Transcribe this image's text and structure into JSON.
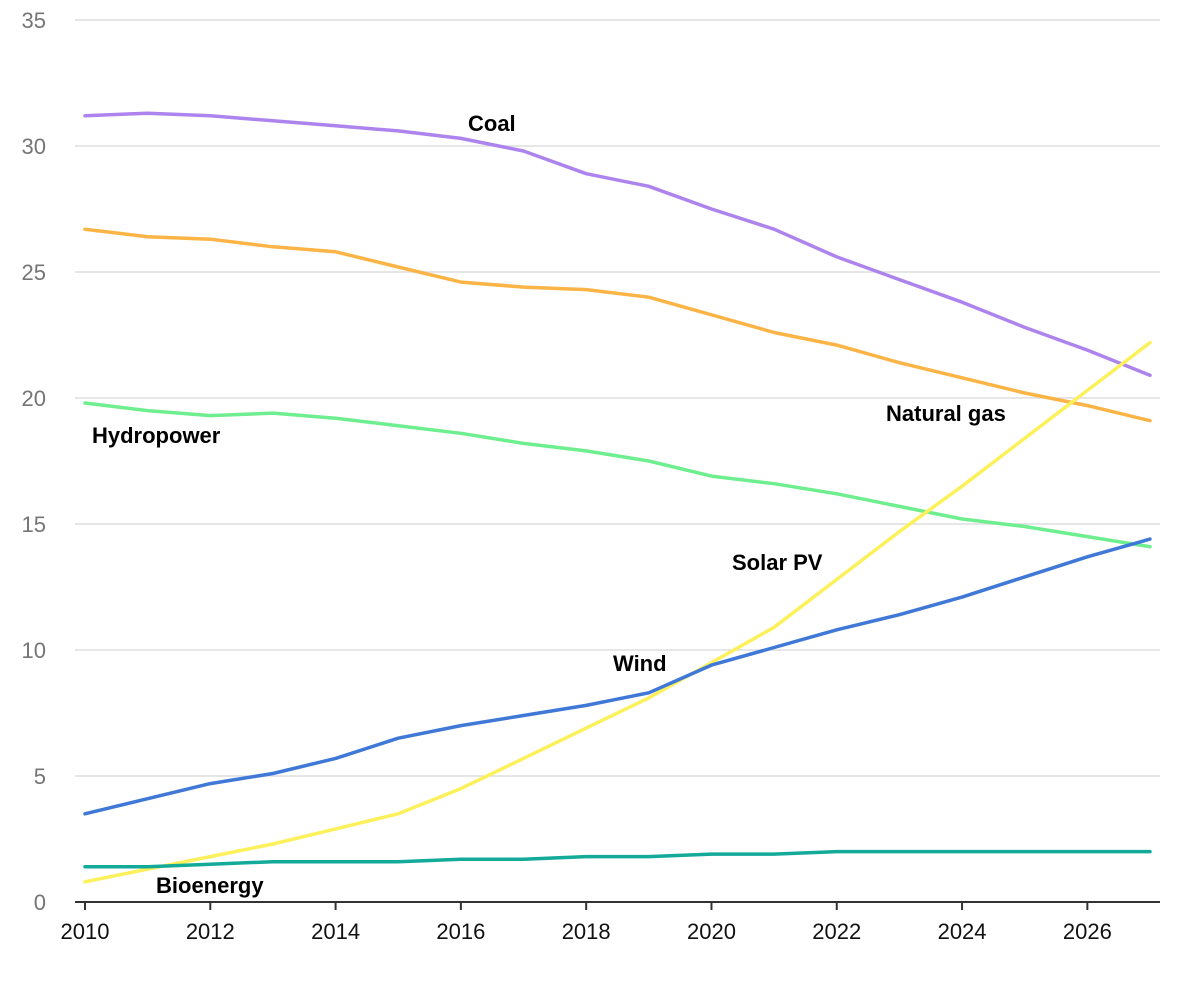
{
  "chart_data": {
    "type": "line",
    "title": "",
    "xlabel": "",
    "ylabel": "",
    "x": [
      2010,
      2011,
      2012,
      2013,
      2014,
      2015,
      2016,
      2017,
      2018,
      2019,
      2020,
      2021,
      2022,
      2023,
      2024,
      2025,
      2026,
      2027
    ],
    "xticks": [
      "2010",
      "2012",
      "2014",
      "2016",
      "2018",
      "2020",
      "2022",
      "2024",
      "2026"
    ],
    "yticks": [
      "0",
      "5",
      "10",
      "15",
      "20",
      "25",
      "30",
      "35"
    ],
    "xlim": [
      2010,
      2027
    ],
    "ylim": [
      0,
      35
    ],
    "grid": true,
    "legend": "inline labels",
    "series": [
      {
        "name": "Coal",
        "color": "#AD84EE",
        "values": [
          31.2,
          31.3,
          31.2,
          31.0,
          30.8,
          30.6,
          30.3,
          29.8,
          28.9,
          28.4,
          27.5,
          26.7,
          25.6,
          24.7,
          23.8,
          22.8,
          21.9,
          20.9
        ]
      },
      {
        "name": "Natural gas",
        "color": "#FBB445",
        "values": [
          26.7,
          26.4,
          26.3,
          26.0,
          25.8,
          25.2,
          24.6,
          24.4,
          24.3,
          24.0,
          23.3,
          22.6,
          22.1,
          21.4,
          20.8,
          20.2,
          19.7,
          19.1
        ]
      },
      {
        "name": "Hydropower",
        "color": "#6EEE8E",
        "values": [
          19.8,
          19.5,
          19.3,
          19.4,
          19.2,
          18.9,
          18.6,
          18.2,
          17.9,
          17.5,
          16.9,
          16.6,
          16.2,
          15.7,
          15.2,
          14.9,
          14.5,
          14.1
        ]
      },
      {
        "name": "Solar PV",
        "color": "#FCF15A",
        "values": [
          0.8,
          1.3,
          1.8,
          2.3,
          2.9,
          3.5,
          4.5,
          5.7,
          6.9,
          8.1,
          9.5,
          10.9,
          12.8,
          14.7,
          16.5,
          18.4,
          20.3,
          22.2
        ]
      },
      {
        "name": "Wind",
        "color": "#3F78D6",
        "values": [
          3.5,
          4.1,
          4.7,
          5.1,
          5.7,
          6.5,
          7.0,
          7.4,
          7.8,
          8.3,
          9.4,
          10.1,
          10.8,
          11.4,
          12.1,
          12.9,
          13.7,
          14.4
        ]
      },
      {
        "name": "Bioenergy",
        "color": "#13AA9A",
        "values": [
          1.4,
          1.4,
          1.5,
          1.6,
          1.6,
          1.6,
          1.7,
          1.7,
          1.8,
          1.8,
          1.9,
          1.9,
          2.0,
          2.0,
          2.0,
          2.0,
          2.0,
          2.0
        ]
      }
    ]
  }
}
